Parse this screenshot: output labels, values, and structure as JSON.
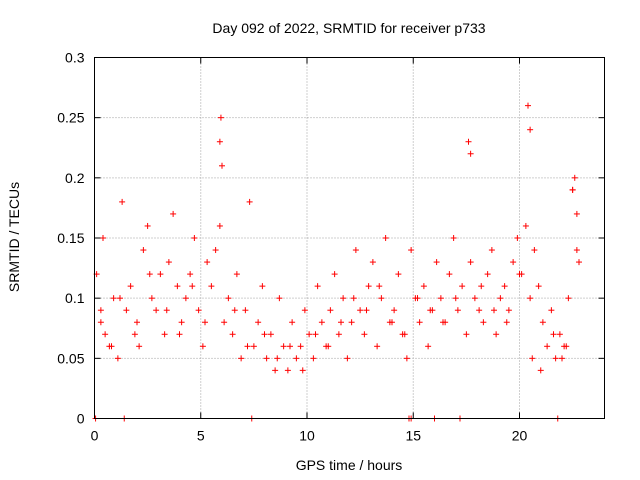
{
  "chart_data": {
    "type": "scatter",
    "title": "Day 092 of 2022, SRMTID for receiver p733",
    "xlabel": "GPS time / hours",
    "ylabel": "SRMTID / TECUs",
    "xlim": [
      0,
      24
    ],
    "ylim": [
      0,
      0.3
    ],
    "xticks": [
      0,
      5,
      10,
      15,
      20
    ],
    "xtick_labels": [
      "0",
      "5",
      "10",
      "15",
      "20"
    ],
    "yticks": [
      0,
      0.05,
      0.1,
      0.15,
      0.2,
      0.25,
      0.3
    ],
    "ytick_labels": [
      "0",
      "0.05",
      "0.1",
      "0.15",
      "0.2",
      "0.25",
      "0.3"
    ],
    "grid": true,
    "marker": "+",
    "color": "#ff0000",
    "series": [
      {
        "name": "SRMTID",
        "x": [
          0.1,
          0.3,
          0.4,
          0.5,
          0.7,
          0.9,
          1.1,
          1.3,
          1.5,
          1.7,
          1.9,
          2.1,
          2.3,
          2.5,
          2.7,
          2.9,
          3.1,
          3.3,
          3.5,
          3.7,
          3.9,
          4.1,
          4.3,
          4.5,
          4.7,
          4.9,
          5.1,
          5.3,
          5.5,
          5.7,
          5.9,
          6.1,
          6.3,
          6.5,
          6.7,
          6.9,
          7.1,
          7.3,
          7.5,
          7.7,
          7.9,
          8.1,
          8.3,
          8.5,
          8.7,
          8.9,
          9.1,
          9.3,
          9.5,
          9.7,
          9.9,
          10.1,
          10.3,
          10.5,
          10.7,
          10.9,
          11.1,
          11.3,
          11.5,
          11.7,
          11.9,
          12.1,
          12.3,
          12.5,
          12.7,
          12.9,
          13.1,
          13.3,
          13.5,
          13.7,
          13.9,
          14.1,
          14.3,
          14.5,
          14.7,
          14.9,
          15.1,
          15.3,
          15.5,
          15.7,
          15.9,
          16.1,
          16.3,
          16.5,
          16.7,
          16.9,
          17.1,
          17.3,
          17.5,
          17.7,
          17.9,
          18.1,
          18.3,
          18.5,
          18.7,
          18.9,
          19.1,
          19.3,
          19.5,
          19.7,
          19.9,
          20.1,
          20.3,
          20.5,
          20.7,
          20.9,
          21.1,
          21.3,
          21.5,
          21.7,
          21.9,
          22.1,
          22.3,
          22.5,
          22.7,
          22.8,
          5.9,
          5.95,
          6.0,
          17.6,
          17.7,
          20.4,
          20.5,
          22.5,
          22.6,
          22.7,
          0.05,
          1.4,
          7.4,
          14.8,
          14.9,
          16.0,
          17.2,
          21.8,
          0.3,
          0.8,
          1.2,
          2.0,
          2.6,
          3.4,
          4.0,
          4.6,
          5.2,
          6.6,
          7.2,
          8.0,
          8.6,
          9.2,
          9.8,
          10.4,
          11.0,
          11.6,
          12.2,
          12.8,
          13.4,
          14.0,
          14.6,
          15.2,
          15.8,
          16.4,
          17.0,
          18.2,
          18.8,
          19.4,
          20.0,
          20.6,
          21.0,
          21.6,
          22.0,
          22.2
        ],
        "y": [
          0.12,
          0.08,
          0.15,
          0.07,
          0.06,
          0.1,
          0.05,
          0.18,
          0.09,
          0.11,
          0.07,
          0.06,
          0.14,
          0.16,
          0.1,
          0.09,
          0.12,
          0.07,
          0.13,
          0.17,
          0.11,
          0.08,
          0.1,
          0.12,
          0.15,
          0.09,
          0.06,
          0.13,
          0.11,
          0.14,
          0.16,
          0.08,
          0.1,
          0.07,
          0.12,
          0.05,
          0.09,
          0.18,
          0.06,
          0.08,
          0.11,
          0.05,
          0.07,
          0.04,
          0.1,
          0.06,
          0.04,
          0.08,
          0.05,
          0.06,
          0.09,
          0.07,
          0.05,
          0.11,
          0.08,
          0.06,
          0.09,
          0.12,
          0.07,
          0.1,
          0.05,
          0.08,
          0.14,
          0.09,
          0.07,
          0.11,
          0.13,
          0.06,
          0.1,
          0.15,
          0.08,
          0.09,
          0.12,
          0.07,
          0.05,
          0.14,
          0.1,
          0.08,
          0.11,
          0.06,
          0.09,
          0.13,
          0.1,
          0.08,
          0.12,
          0.15,
          0.09,
          0.11,
          0.07,
          0.13,
          0.1,
          0.09,
          0.08,
          0.12,
          0.14,
          0.07,
          0.1,
          0.11,
          0.09,
          0.13,
          0.15,
          0.12,
          0.16,
          0.1,
          0.14,
          0.11,
          0.08,
          0.06,
          0.09,
          0.05,
          0.07,
          0.06,
          0.1,
          0.19,
          0.14,
          0.13,
          0.23,
          0.25,
          0.21,
          0.23,
          0.22,
          0.26,
          0.24,
          0.19,
          0.2,
          0.17,
          0.0,
          0.0,
          0.0,
          0.0,
          0.0,
          0.0,
          0.0,
          0.0,
          0.09,
          0.06,
          0.1,
          0.08,
          0.12,
          0.09,
          0.07,
          0.11,
          0.08,
          0.09,
          0.06,
          0.07,
          0.05,
          0.06,
          0.04,
          0.07,
          0.06,
          0.08,
          0.1,
          0.09,
          0.11,
          0.08,
          0.07,
          0.1,
          0.09,
          0.08,
          0.1,
          0.11,
          0.09,
          0.08,
          0.12,
          0.05,
          0.04,
          0.07,
          0.05,
          0.06
        ]
      }
    ]
  }
}
